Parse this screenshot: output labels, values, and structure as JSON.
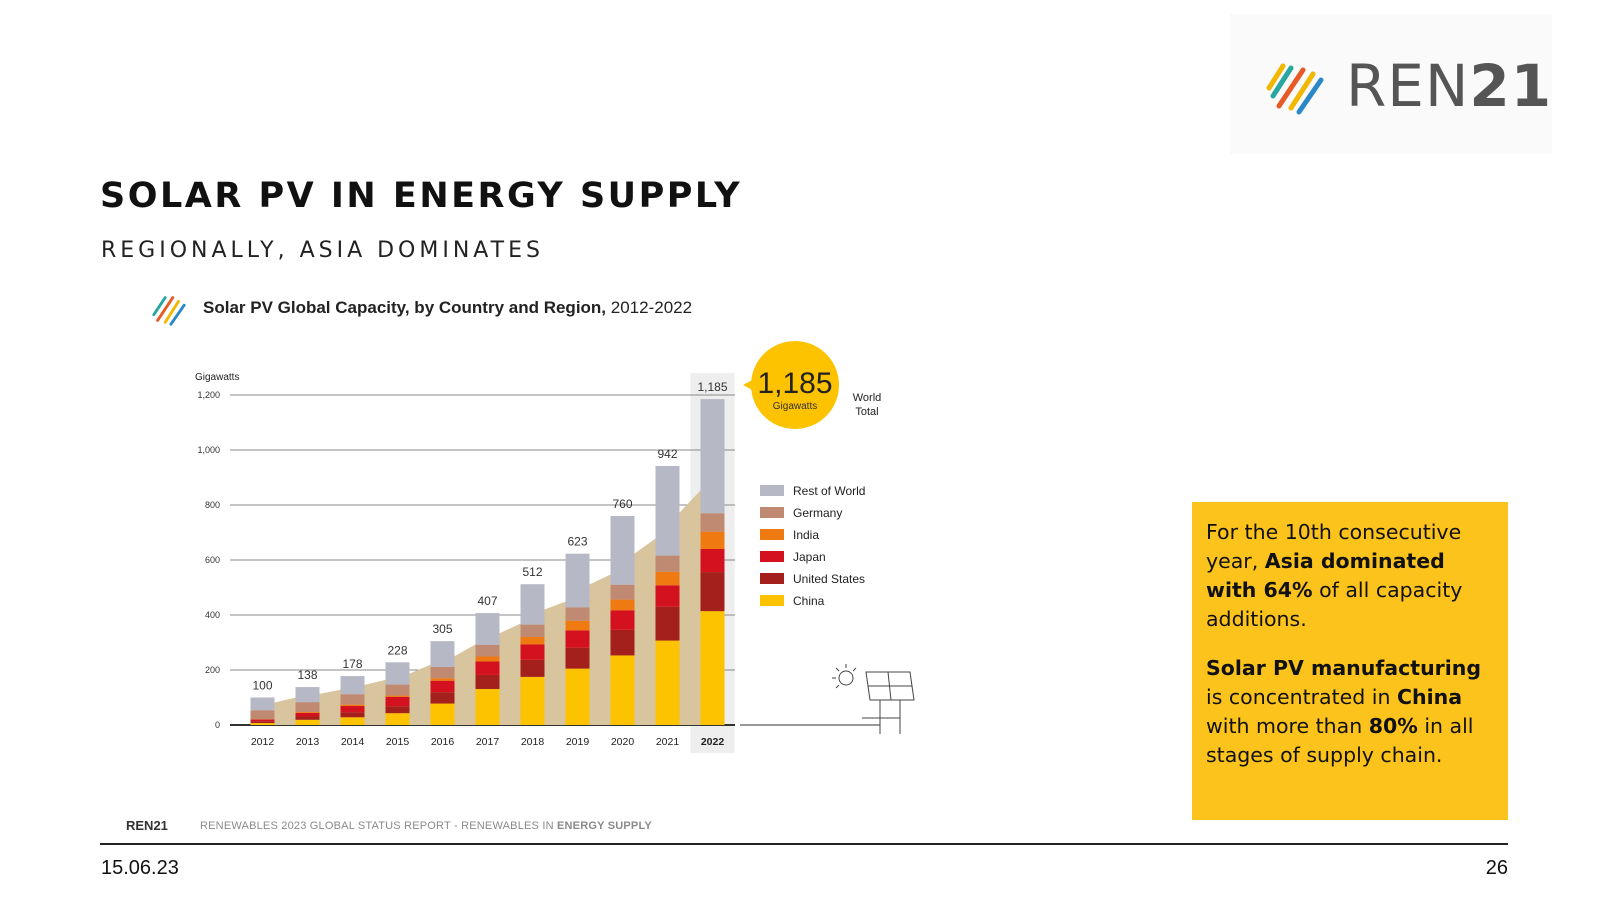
{
  "header": {
    "logo_text_a": "REN",
    "logo_text_b": "21"
  },
  "slide": {
    "title": "SOLAR PV IN ENERGY SUPPLY",
    "subtitle": "REGIONALLY, ASIA DOMINATES"
  },
  "chart_heading": {
    "bold": "Solar PV Global Capacity, by Country and Region,",
    "normal": " 2012-2022"
  },
  "chart_data": {
    "type": "bar",
    "stacked": true,
    "ylabel": "Gigawatts",
    "ylim": [
      0,
      1200
    ],
    "yticks": [
      0,
      200,
      400,
      600,
      800,
      1000,
      1200
    ],
    "ytick_labels": [
      "0",
      "200",
      "400",
      "600",
      "800",
      "1,000",
      "1,200"
    ],
    "categories": [
      "2012",
      "2013",
      "2014",
      "2015",
      "2016",
      "2017",
      "2018",
      "2019",
      "2020",
      "2021",
      "2022"
    ],
    "totals": [
      100,
      138,
      178,
      228,
      305,
      407,
      512,
      623,
      760,
      942,
      1185
    ],
    "total_labels": [
      "100",
      "138",
      "178",
      "228",
      "305",
      "407",
      "512",
      "623",
      "760",
      "942",
      "1,185"
    ],
    "series": [
      {
        "name": "China",
        "color": "#fdc300",
        "values": [
          7,
          19,
          28,
          43,
          78,
          131,
          175,
          205,
          253,
          307,
          414
        ]
      },
      {
        "name": "United States",
        "color": "#a3201d",
        "values": [
          7,
          12,
          18,
          25,
          41,
          51,
          62,
          76,
          93,
          123,
          142
        ]
      },
      {
        "name": "Japan",
        "color": "#d4111e",
        "values": [
          6,
          13,
          23,
          34,
          42,
          49,
          56,
          63,
          71,
          78,
          84
        ]
      },
      {
        "name": "India",
        "color": "#ef7a12",
        "values": [
          1,
          3,
          5,
          5,
          9,
          18,
          27,
          35,
          39,
          49,
          63
        ]
      },
      {
        "name": "Germany",
        "color": "#c08a72",
        "values": [
          33,
          36,
          38,
          40,
          41,
          42,
          45,
          49,
          54,
          59,
          67
        ]
      },
      {
        "name": "Rest of World",
        "color": "#b7b8c6",
        "values": [
          46,
          55,
          66,
          81,
          94,
          116,
          147,
          195,
          250,
          326,
          415
        ]
      }
    ],
    "annotation": {
      "value": "1,185",
      "unit": "Gigawatts",
      "label_line1": "World",
      "label_line2": "Total"
    }
  },
  "info_box": {
    "p1_a": "For the 10th consecutive year, ",
    "p1_b": "Asia dominated  with 64%",
    "p1_c": " of all capacity additions.",
    "p2_a": "Solar PV manufacturing",
    "p2_b": " is concentrated in ",
    "p2_c": "China",
    "p2_d": " with more than ",
    "p2_e": "80%",
    "p2_f": " in all stages of supply chain."
  },
  "footer": {
    "logo": "REN21",
    "caption_a": "RENEWABLES 2023 GLOBAL STATUS REPORT - RENEWABLES IN ",
    "caption_b": "ENERGY SUPPLY",
    "date": "15.06.23",
    "page": "26"
  },
  "colors": {
    "accent_yellow": "#fbc31b",
    "area_tan": "#d8c49d",
    "highlight_bg": "#eeeeee"
  }
}
